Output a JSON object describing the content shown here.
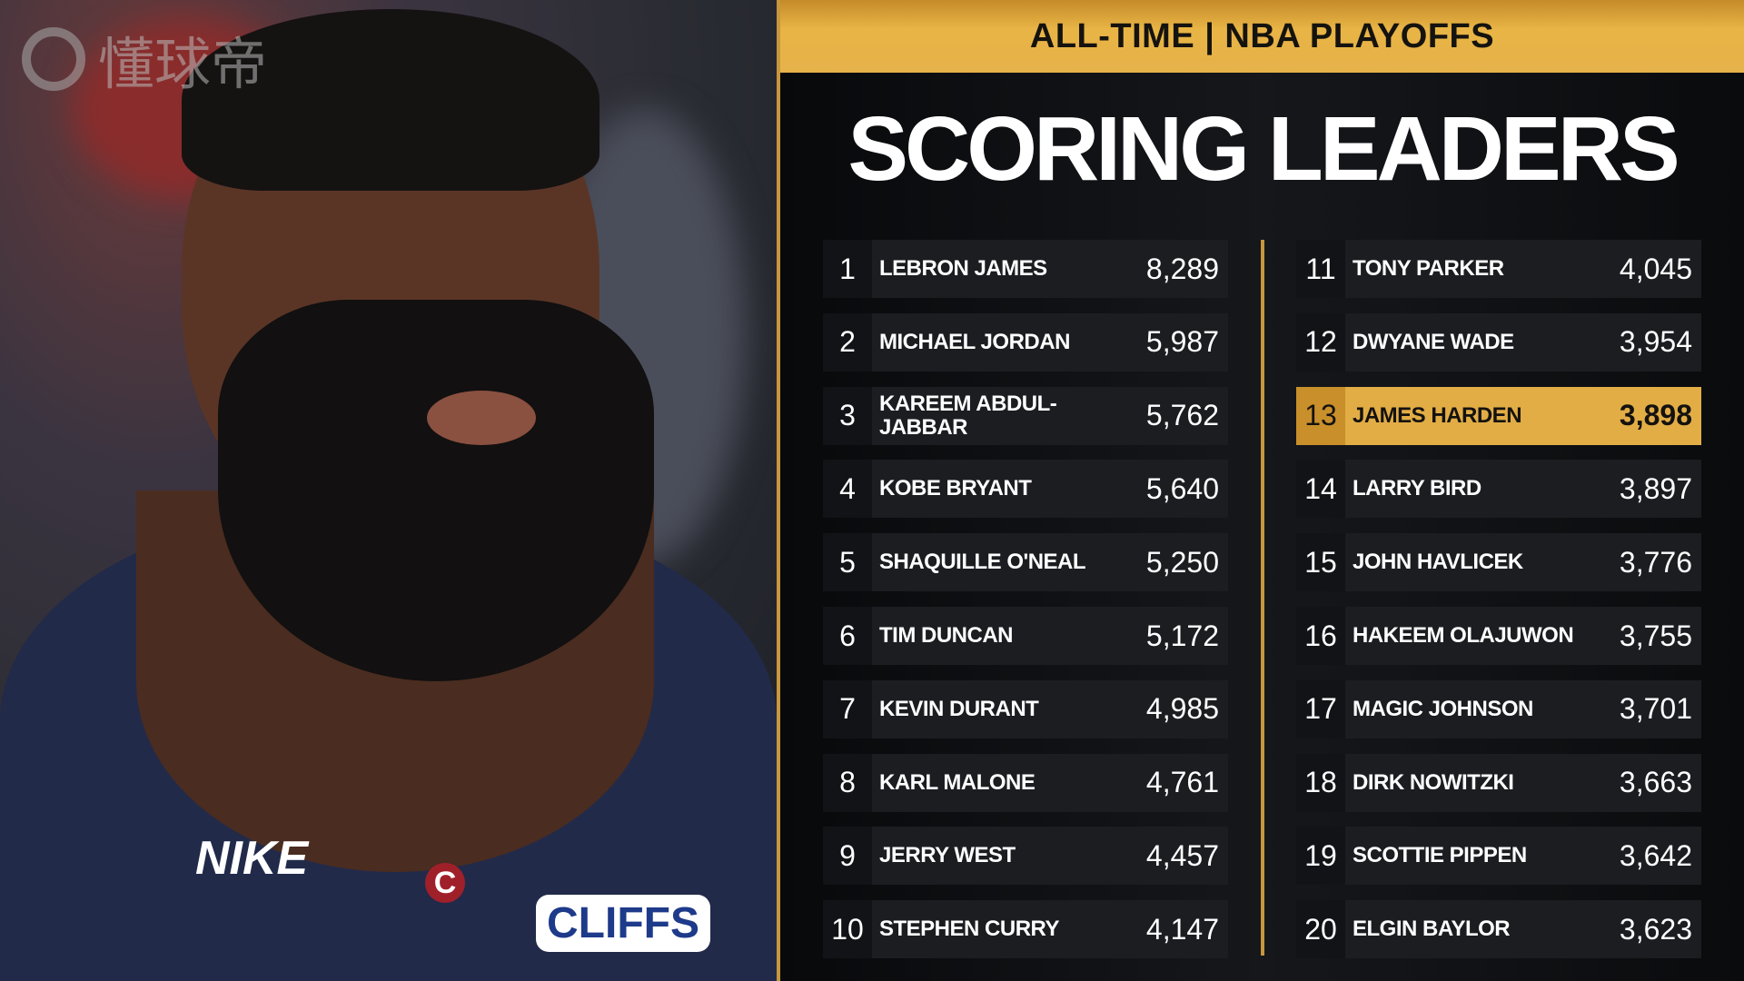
{
  "header": {
    "subtitle": "ALL-TIME | NBA PLAYOFFS",
    "title": "SCORING LEADERS"
  },
  "colors": {
    "gold": "#e2ad45",
    "background": "#0b0c0e"
  },
  "leaders": [
    {
      "rank": "1",
      "name": "LEBRON JAMES",
      "points": "8,289"
    },
    {
      "rank": "2",
      "name": "MICHAEL JORDAN",
      "points": "5,987"
    },
    {
      "rank": "3",
      "name": "KAREEM ABDUL-JABBAR",
      "points": "5,762"
    },
    {
      "rank": "4",
      "name": "KOBE BRYANT",
      "points": "5,640"
    },
    {
      "rank": "5",
      "name": "SHAQUILLE O'NEAL",
      "points": "5,250"
    },
    {
      "rank": "6",
      "name": "TIM DUNCAN",
      "points": "5,172"
    },
    {
      "rank": "7",
      "name": "KEVIN DURANT",
      "points": "4,985"
    },
    {
      "rank": "8",
      "name": "KARL MALONE",
      "points": "4,761"
    },
    {
      "rank": "9",
      "name": "JERRY WEST",
      "points": "4,457"
    },
    {
      "rank": "10",
      "name": "STEPHEN CURRY",
      "points": "4,147"
    },
    {
      "rank": "11",
      "name": "TONY PARKER",
      "points": "4,045"
    },
    {
      "rank": "12",
      "name": "DWYANE WADE",
      "points": "3,954"
    },
    {
      "rank": "13",
      "name": "JAMES HARDEN",
      "points": "3,898",
      "highlighted": true
    },
    {
      "rank": "14",
      "name": "LARRY BIRD",
      "points": "3,897"
    },
    {
      "rank": "15",
      "name": "JOHN HAVLICEK",
      "points": "3,776"
    },
    {
      "rank": "16",
      "name": "HAKEEM OLAJUWON",
      "points": "3,755"
    },
    {
      "rank": "17",
      "name": "MAGIC JOHNSON",
      "points": "3,701"
    },
    {
      "rank": "18",
      "name": "DIRK NOWITZKI",
      "points": "3,663"
    },
    {
      "rank": "19",
      "name": "SCOTTIE PIPPEN",
      "points": "3,642"
    },
    {
      "rank": "20",
      "name": "ELGIN BAYLOR",
      "points": "3,623"
    }
  ],
  "photo": {
    "jersey_brand": "NIKE",
    "jersey_sponsor": "CLIFFS",
    "jersey_logo": "C"
  },
  "watermark": {
    "text": "懂球帝"
  }
}
